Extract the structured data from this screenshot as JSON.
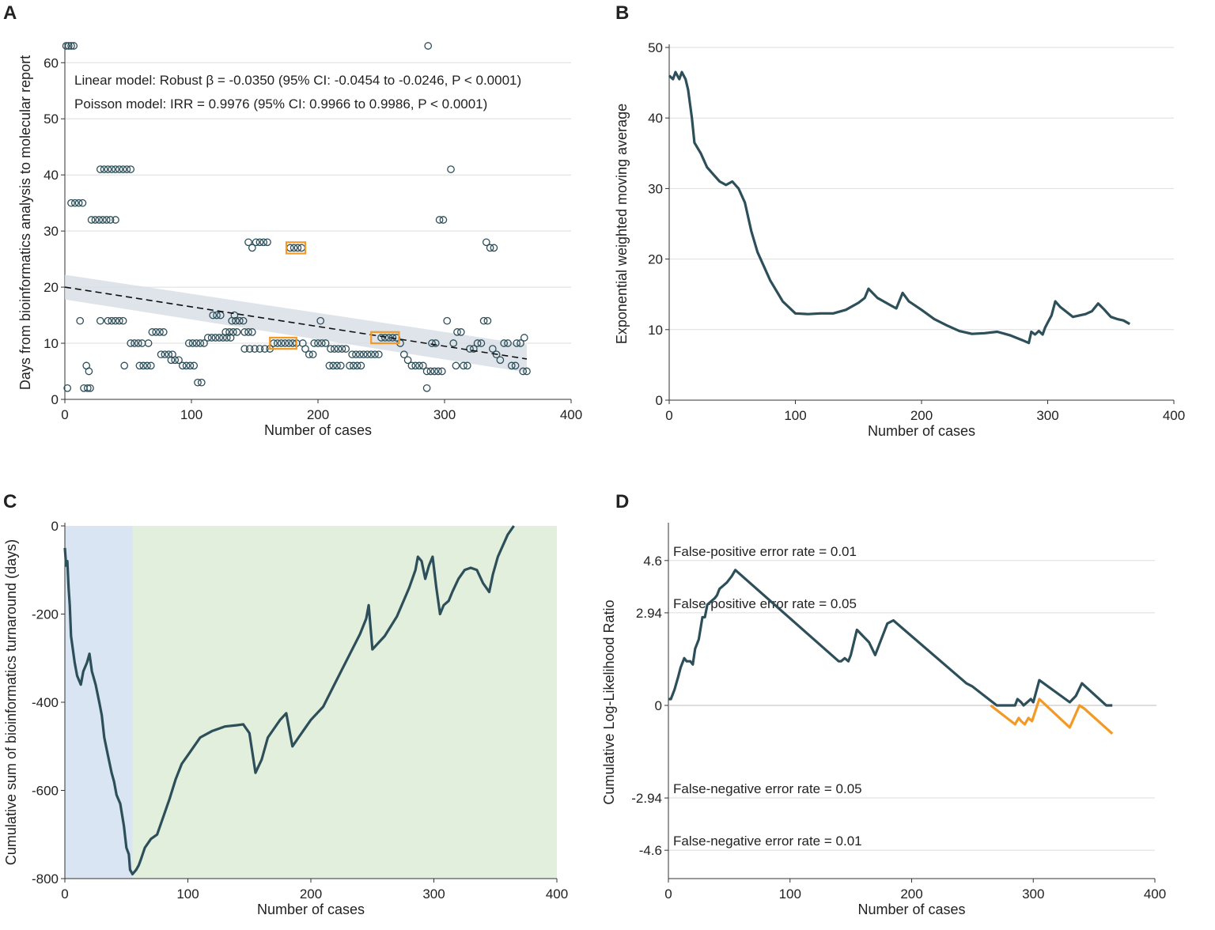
{
  "colors": {
    "series": "#2d4f5a",
    "highlight": "#f29a25",
    "ci_band": "#d6dde3",
    "learning_phase": "#d9e5f3",
    "competent_phase": "#e2efdc",
    "gridline": "#dedede"
  },
  "chart_data": [
    {
      "panel": "A",
      "type": "scatter",
      "xlabel": "Number of cases",
      "ylabel": "Days from bioinformatics analysis to molecular report",
      "xlim": [
        0,
        400
      ],
      "ylim": [
        0,
        63
      ],
      "xticks": [
        0,
        100,
        200,
        300,
        400
      ],
      "yticks": [
        0,
        10,
        20,
        30,
        40,
        50,
        60
      ],
      "annotations": [
        "Linear model: Robust β = -0.0350 (95% CI: -0.0454 to -0.0246, P < 0.0001)",
        "Poisson model: IRR = 0.9976 (95% CI: 0.9966 to 0.9986, P < 0.0001)"
      ],
      "fit_line": {
        "x": [
          0,
          365
        ],
        "y": [
          20,
          7.2
        ]
      },
      "ci_band": {
        "x": [
          0,
          365
        ],
        "upper": [
          22.2,
          9.8
        ],
        "lower": [
          17.8,
          4.8
        ]
      },
      "highlight_boxes": [
        {
          "x": [
            175,
            190
          ],
          "y": [
            26,
            28
          ]
        },
        {
          "x": [
            162,
            183
          ],
          "y": [
            9,
            11
          ]
        },
        {
          "x": [
            242,
            264
          ],
          "y": [
            10,
            12
          ]
        }
      ],
      "points": [
        [
          1,
          63
        ],
        [
          3,
          63
        ],
        [
          5,
          63
        ],
        [
          7,
          63
        ],
        [
          2,
          2
        ],
        [
          5,
          35
        ],
        [
          8,
          35
        ],
        [
          11,
          35
        ],
        [
          14,
          35
        ],
        [
          12,
          14
        ],
        [
          15,
          2
        ],
        [
          18,
          2
        ],
        [
          20,
          2
        ],
        [
          17,
          6
        ],
        [
          19,
          5
        ],
        [
          21,
          32
        ],
        [
          24,
          32
        ],
        [
          27,
          32
        ],
        [
          30,
          32
        ],
        [
          33,
          32
        ],
        [
          28,
          41
        ],
        [
          31,
          41
        ],
        [
          34,
          41
        ],
        [
          37,
          41
        ],
        [
          40,
          41
        ],
        [
          43,
          41
        ],
        [
          46,
          41
        ],
        [
          49,
          41
        ],
        [
          52,
          41
        ],
        [
          28,
          14
        ],
        [
          34,
          14
        ],
        [
          37,
          14
        ],
        [
          40,
          14
        ],
        [
          43,
          14
        ],
        [
          46,
          14
        ],
        [
          36,
          32
        ],
        [
          40,
          32
        ],
        [
          47,
          6
        ],
        [
          52,
          10
        ],
        [
          55,
          10
        ],
        [
          58,
          10
        ],
        [
          61,
          10
        ],
        [
          59,
          6
        ],
        [
          62,
          6
        ],
        [
          65,
          6
        ],
        [
          68,
          6
        ],
        [
          66,
          10
        ],
        [
          69,
          12
        ],
        [
          72,
          12
        ],
        [
          75,
          12
        ],
        [
          78,
          12
        ],
        [
          76,
          8
        ],
        [
          79,
          8
        ],
        [
          82,
          8
        ],
        [
          85,
          8
        ],
        [
          84,
          7
        ],
        [
          87,
          7
        ],
        [
          90,
          7
        ],
        [
          93,
          6
        ],
        [
          96,
          6
        ],
        [
          99,
          6
        ],
        [
          102,
          6
        ],
        [
          98,
          10
        ],
        [
          101,
          10
        ],
        [
          104,
          10
        ],
        [
          107,
          10
        ],
        [
          110,
          10
        ],
        [
          105,
          3
        ],
        [
          108,
          3
        ],
        [
          113,
          11
        ],
        [
          116,
          11
        ],
        [
          119,
          11
        ],
        [
          122,
          11
        ],
        [
          125,
          11
        ],
        [
          128,
          11
        ],
        [
          131,
          11
        ],
        [
          117,
          15
        ],
        [
          120,
          15
        ],
        [
          123,
          15
        ],
        [
          127,
          12
        ],
        [
          130,
          12
        ],
        [
          133,
          12
        ],
        [
          136,
          12
        ],
        [
          132,
          14
        ],
        [
          135,
          14
        ],
        [
          138,
          14
        ],
        [
          141,
          14
        ],
        [
          134,
          15
        ],
        [
          142,
          12
        ],
        [
          145,
          12
        ],
        [
          148,
          12
        ],
        [
          145,
          28
        ],
        [
          148,
          27
        ],
        [
          151,
          28
        ],
        [
          154,
          28
        ],
        [
          157,
          28
        ],
        [
          160,
          28
        ],
        [
          142,
          9
        ],
        [
          146,
          9
        ],
        [
          150,
          9
        ],
        [
          154,
          9
        ],
        [
          158,
          9
        ],
        [
          162,
          9
        ],
        [
          165,
          10
        ],
        [
          168,
          10
        ],
        [
          171,
          10
        ],
        [
          174,
          10
        ],
        [
          177,
          10
        ],
        [
          180,
          10
        ],
        [
          183,
          10
        ],
        [
          178,
          27
        ],
        [
          181,
          27
        ],
        [
          184,
          27
        ],
        [
          187,
          27
        ],
        [
          188,
          10
        ],
        [
          190,
          9
        ],
        [
          193,
          8
        ],
        [
          196,
          8
        ],
        [
          197,
          10
        ],
        [
          200,
          10
        ],
        [
          203,
          10
        ],
        [
          206,
          10
        ],
        [
          202,
          14
        ],
        [
          209,
          6
        ],
        [
          212,
          6
        ],
        [
          215,
          6
        ],
        [
          218,
          6
        ],
        [
          210,
          9
        ],
        [
          213,
          9
        ],
        [
          216,
          9
        ],
        [
          219,
          9
        ],
        [
          222,
          9
        ],
        [
          225,
          6
        ],
        [
          228,
          6
        ],
        [
          231,
          6
        ],
        [
          234,
          6
        ],
        [
          227,
          8
        ],
        [
          230,
          8
        ],
        [
          233,
          8
        ],
        [
          236,
          8
        ],
        [
          239,
          8
        ],
        [
          242,
          8
        ],
        [
          245,
          8
        ],
        [
          248,
          8
        ],
        [
          250,
          11
        ],
        [
          253,
          11
        ],
        [
          256,
          11
        ],
        [
          259,
          11
        ],
        [
          262,
          11
        ],
        [
          265,
          10
        ],
        [
          268,
          8
        ],
        [
          271,
          7
        ],
        [
          274,
          6
        ],
        [
          277,
          6
        ],
        [
          280,
          6
        ],
        [
          283,
          6
        ],
        [
          286,
          5
        ],
        [
          289,
          5
        ],
        [
          292,
          5
        ],
        [
          295,
          5
        ],
        [
          298,
          5
        ],
        [
          287,
          63
        ],
        [
          286,
          2
        ],
        [
          290,
          10
        ],
        [
          293,
          10
        ],
        [
          296,
          32
        ],
        [
          299,
          32
        ],
        [
          302,
          14
        ],
        [
          305,
          41
        ],
        [
          307,
          10
        ],
        [
          310,
          12
        ],
        [
          313,
          12
        ],
        [
          309,
          6
        ],
        [
          315,
          6
        ],
        [
          318,
          6
        ],
        [
          320,
          9
        ],
        [
          323,
          9
        ],
        [
          326,
          10
        ],
        [
          329,
          10
        ],
        [
          331,
          14
        ],
        [
          334,
          14
        ],
        [
          333,
          28
        ],
        [
          336,
          27
        ],
        [
          339,
          27
        ],
        [
          338,
          9
        ],
        [
          341,
          8
        ],
        [
          344,
          7
        ],
        [
          347,
          10
        ],
        [
          350,
          10
        ],
        [
          353,
          6
        ],
        [
          356,
          6
        ],
        [
          357,
          10
        ],
        [
          360,
          10
        ],
        [
          363,
          11
        ],
        [
          362,
          5
        ],
        [
          365,
          5
        ]
      ]
    },
    {
      "panel": "B",
      "type": "line",
      "xlabel": "Number of cases",
      "ylabel": "Exponential weighted moving average",
      "xlim": [
        0,
        400
      ],
      "ylim": [
        0,
        50
      ],
      "xticks": [
        0,
        100,
        200,
        300,
        400
      ],
      "yticks": [
        0,
        10,
        20,
        30,
        40,
        50
      ],
      "x": [
        0,
        3,
        5,
        8,
        10,
        13,
        15,
        18,
        20,
        25,
        30,
        35,
        40,
        45,
        50,
        55,
        60,
        65,
        70,
        80,
        90,
        100,
        110,
        120,
        130,
        140,
        150,
        155,
        158,
        165,
        175,
        180,
        185,
        190,
        200,
        210,
        220,
        230,
        240,
        250,
        260,
        270,
        280,
        285,
        287,
        290,
        293,
        296,
        298,
        300,
        303,
        306,
        310,
        320,
        330,
        335,
        340,
        345,
        350,
        355,
        360,
        365
      ],
      "y": [
        46,
        45.5,
        46.5,
        45.5,
        46.5,
        45.5,
        44,
        40,
        36.5,
        35,
        33,
        32,
        31,
        30.5,
        31,
        30,
        28,
        24,
        21,
        17,
        14,
        12.3,
        12.2,
        12.3,
        12.3,
        12.8,
        13.8,
        14.5,
        15.8,
        14.5,
        13.5,
        13,
        15.2,
        14,
        12.8,
        11.5,
        10.6,
        9.8,
        9.4,
        9.5,
        9.7,
        9.2,
        8.5,
        8.1,
        9.7,
        9.3,
        9.8,
        9.3,
        10.3,
        11,
        12,
        14,
        13.2,
        11.8,
        12.2,
        12.6,
        13.7,
        12.8,
        11.8,
        11.5,
        11.3,
        10.8
      ]
    },
    {
      "panel": "C",
      "type": "line",
      "xlabel": "Number of cases",
      "ylabel": "Cumulative sum of bioinformatics turnaround (days)",
      "xlim": [
        0,
        400
      ],
      "ylim": [
        -800,
        0
      ],
      "xticks": [
        0,
        100,
        200,
        300,
        400
      ],
      "yticks": [
        0,
        -200,
        -400,
        -600,
        -800
      ],
      "phases": [
        {
          "name": "learning",
          "x": [
            0,
            55
          ]
        },
        {
          "name": "competent",
          "x": [
            55,
            400
          ]
        }
      ],
      "x": [
        0,
        1,
        2,
        3,
        4,
        5,
        8,
        10,
        13,
        15,
        18,
        20,
        22,
        25,
        28,
        30,
        32,
        35,
        38,
        40,
        42,
        45,
        48,
        50,
        52,
        53,
        54,
        55,
        58,
        60,
        62,
        65,
        70,
        75,
        80,
        85,
        90,
        95,
        100,
        110,
        120,
        130,
        140,
        145,
        150,
        155,
        160,
        165,
        170,
        175,
        180,
        185,
        190,
        200,
        210,
        220,
        230,
        240,
        245,
        247,
        250,
        260,
        270,
        280,
        285,
        287,
        290,
        293,
        296,
        299,
        302,
        305,
        308,
        312,
        315,
        320,
        325,
        330,
        335,
        340,
        345,
        348,
        352,
        360,
        365
      ],
      "y": [
        -50,
        -90,
        -80,
        -140,
        -180,
        -250,
        -310,
        -340,
        -360,
        -330,
        -310,
        -290,
        -330,
        -360,
        -400,
        -430,
        -480,
        -520,
        -560,
        -580,
        -610,
        -630,
        -680,
        -730,
        -745,
        -780,
        -785,
        -790,
        -780,
        -770,
        -755,
        -730,
        -710,
        -700,
        -660,
        -620,
        -575,
        -540,
        -520,
        -480,
        -465,
        -455,
        -452,
        -450,
        -470,
        -560,
        -530,
        -480,
        -460,
        -440,
        -425,
        -500,
        -480,
        -440,
        -410,
        -355,
        -300,
        -245,
        -210,
        -180,
        -280,
        -250,
        -205,
        -140,
        -100,
        -70,
        -80,
        -120,
        -90,
        -70,
        -140,
        -200,
        -180,
        -170,
        -150,
        -120,
        -100,
        -95,
        -100,
        -130,
        -150,
        -110,
        -70,
        -20,
        0
      ]
    },
    {
      "panel": "D",
      "type": "line",
      "xlabel": "Number of cases",
      "ylabel": "Cumulative Log-Likelihood Ratio",
      "xlim": [
        0,
        400
      ],
      "ylim": [
        -5.5,
        5.7
      ],
      "xticks": [
        0,
        100,
        200,
        300,
        400
      ],
      "yticks": [
        4.6,
        2.94,
        0,
        -2.94,
        -4.6
      ],
      "ytick_labels": [
        "4.6",
        "2.94",
        "0",
        "-2.94",
        "-4.6"
      ],
      "thresholds": [
        {
          "y": 4.6,
          "label": "False-positive error rate = 0.01"
        },
        {
          "y": 2.94,
          "label": "False-positive error rate = 0.05"
        },
        {
          "y": -2.94,
          "label": "False-negative error rate = 0.05"
        },
        {
          "y": -4.6,
          "label": "False-negative error rate = 0.01"
        }
      ],
      "series": [
        {
          "name": "main",
          "x": [
            0,
            2,
            5,
            8,
            10,
            13,
            15,
            18,
            20,
            22,
            25,
            28,
            30,
            32,
            35,
            38,
            40,
            42,
            45,
            48,
            50,
            52,
            55,
            140,
            142,
            145,
            148,
            150,
            155,
            165,
            170,
            180,
            185,
            245,
            250,
            270,
            280,
            282,
            285,
            287,
            290,
            292,
            295,
            298,
            300,
            305,
            330,
            335,
            340,
            360,
            365
          ],
          "y": [
            0.2,
            0.2,
            0.5,
            0.9,
            1.2,
            1.5,
            1.4,
            1.4,
            1.3,
            1.8,
            2.1,
            2.8,
            2.8,
            3.2,
            3.3,
            3.4,
            3.5,
            3.7,
            3.8,
            3.9,
            4.0,
            4.1,
            4.3,
            1.4,
            1.4,
            1.5,
            1.4,
            1.6,
            2.4,
            2.0,
            1.6,
            2.6,
            2.7,
            0.7,
            0.6,
            0,
            0,
            0,
            0,
            0.2,
            0.1,
            0,
            0.1,
            0.2,
            0.1,
            0.8,
            0.1,
            0.3,
            0.7,
            0,
            0
          ]
        },
        {
          "name": "reset",
          "x": [
            265,
            285,
            288,
            290,
            293,
            296,
            299,
            305,
            330,
            338,
            342,
            365
          ],
          "y": [
            0,
            -0.6,
            -0.4,
            -0.5,
            -0.6,
            -0.4,
            -0.5,
            0.2,
            -0.7,
            0,
            -0.1,
            -0.9
          ]
        }
      ]
    }
  ]
}
